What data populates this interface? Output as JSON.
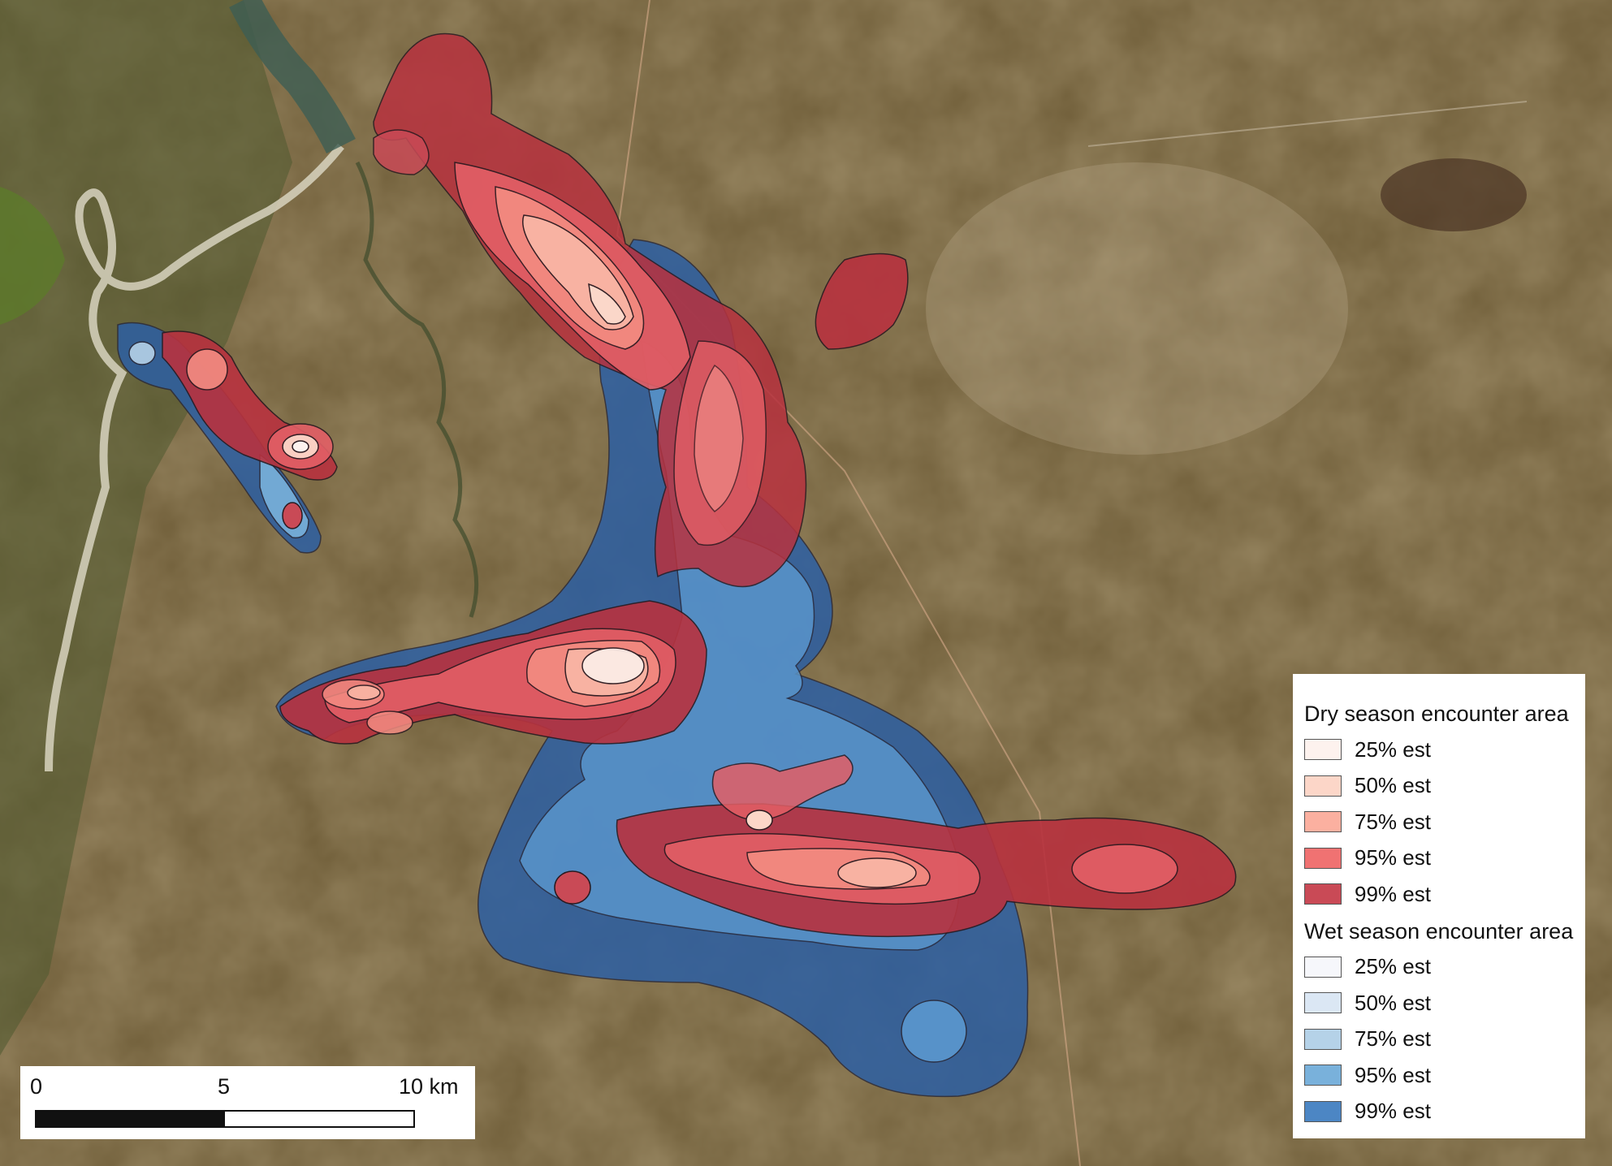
{
  "colors": {
    "dry": [
      "#fdf2ee",
      "#fcd6c8",
      "#fbb0a0",
      "#f07272",
      "#c94a56"
    ],
    "wet": [
      "#f6f7fb",
      "#dbe7f4",
      "#b5d2e8",
      "#79b1db",
      "#4c86c4"
    ],
    "terrain": "#6b5a36",
    "river": "#d9d6c4"
  },
  "legend": {
    "dry_title": "Dry season encounter area",
    "dry_items": [
      "25% est",
      "50% est",
      "75% est",
      "95% est",
      "99% est"
    ],
    "wet_title": "Wet season encounter area",
    "wet_items": [
      "25% est",
      "50% est",
      "75% est",
      "95% est",
      "99% est"
    ]
  },
  "scale_bar": {
    "ticks": [
      "0",
      "5",
      "10 km"
    ]
  }
}
